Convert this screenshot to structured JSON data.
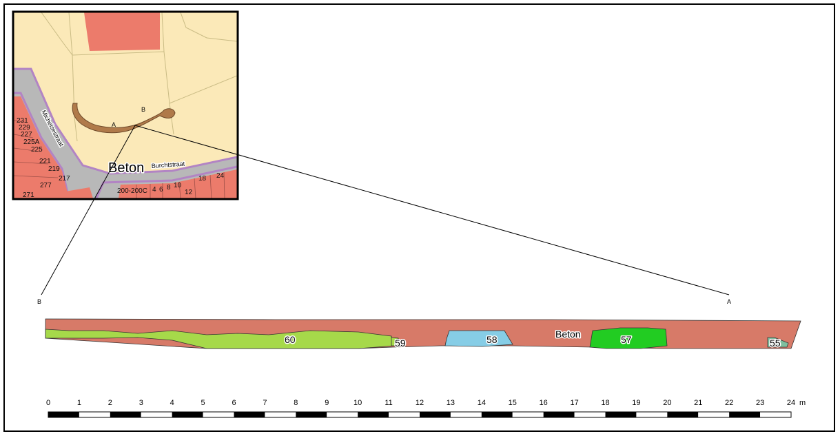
{
  "inset_map": {
    "street_label": "Beton",
    "street_names": [
      "Michelsestraat",
      "Burchtstraat"
    ],
    "section_endpoints": [
      "A",
      "B"
    ],
    "house_numbers": [
      "231",
      "229",
      "227",
      "225A",
      "225",
      "221",
      "219",
      "217",
      "277",
      "271",
      "200-200C",
      "4",
      "6",
      "8",
      "10",
      "12",
      "18",
      "24"
    ],
    "colors": {
      "parcel_background": "#fbe9b8",
      "buildings": "#ec7b6b",
      "road": "#b8b8b8",
      "road_edge": "#b284c4",
      "excavation_trench": "#b07a4a"
    }
  },
  "section": {
    "endpoint_left": "B",
    "endpoint_right": "A",
    "background_layer": {
      "label": "Beton",
      "color": "#d77a68"
    },
    "features": [
      {
        "id": "60",
        "color": "#a6d94a"
      },
      {
        "id": "59",
        "color": "#a6d94a"
      },
      {
        "id": "58",
        "color": "#86cde6"
      },
      {
        "id": "57",
        "color": "#22cc22"
      },
      {
        "id": "55",
        "color": "#7fbf9f"
      }
    ]
  },
  "scale_bar": {
    "ticks": [
      "0",
      "1",
      "2",
      "3",
      "4",
      "5",
      "6",
      "7",
      "8",
      "9",
      "10",
      "11",
      "12",
      "13",
      "14",
      "15",
      "16",
      "17",
      "18",
      "19",
      "20",
      "21",
      "22",
      "23",
      "24"
    ],
    "unit": "m",
    "max": 24
  }
}
